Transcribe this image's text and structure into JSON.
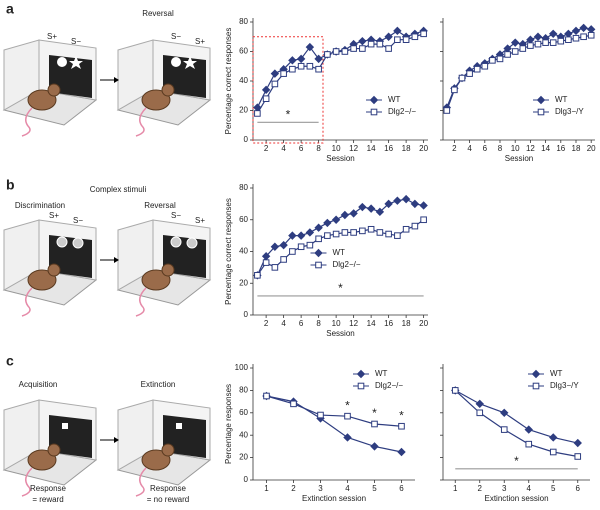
{
  "panels": [
    {
      "label": "a",
      "texts": [
        "S+",
        "S−",
        "Reversal",
        "S−",
        "S+"
      ]
    },
    {
      "label": "b",
      "texts": [
        "Complex stimuli",
        "Discrimination",
        "Reversal",
        "S+",
        "S−",
        "S−",
        "S+"
      ]
    },
    {
      "label": "c",
      "texts": [
        "Acquisition",
        "Extinction",
        "Response",
        "= reward",
        "Response",
        "= no reward"
      ]
    }
  ],
  "chart_data": [
    {
      "type": "line",
      "ylabel": "Percentage correct responses",
      "xlabel": "Session",
      "xlim": [
        0.5,
        20.5
      ],
      "xticks": [
        2,
        4,
        6,
        8,
        10,
        12,
        14,
        16,
        18,
        20
      ],
      "ylim": [
        0,
        80
      ],
      "yticks": [
        0,
        20,
        40,
        60,
        80
      ],
      "ytick_labels": true,
      "legend": "lower right",
      "x": [
        1,
        2,
        3,
        4,
        5,
        6,
        7,
        8,
        9,
        10,
        11,
        12,
        13,
        14,
        15,
        16,
        17,
        18,
        19,
        20
      ],
      "series": [
        {
          "name": "WT",
          "color": "#2e3d80",
          "marker": "diamond",
          "values": [
            22,
            34,
            45,
            48,
            54,
            55,
            63,
            55,
            58,
            60,
            61,
            65,
            67,
            68,
            67,
            70,
            74,
            70,
            72,
            74
          ]
        },
        {
          "name": "Dlg2−/−",
          "color": "#2e3d80",
          "marker": "square",
          "values": [
            18,
            28,
            38,
            45,
            48,
            50,
            50,
            48,
            58,
            60,
            60,
            62,
            62,
            65,
            65,
            62,
            68,
            68,
            70,
            72
          ]
        }
      ],
      "highlight": {
        "x": [
          0.5,
          8.5
        ],
        "y": [
          -2,
          70
        ]
      },
      "significance": [
        {
          "x": [
            1,
            8
          ],
          "y": 12,
          "label": "*"
        }
      ]
    },
    {
      "type": "line",
      "xlabel": "Session",
      "xlim": [
        0.5,
        20.5
      ],
      "xticks": [
        2,
        4,
        6,
        8,
        10,
        12,
        14,
        16,
        18,
        20
      ],
      "ylim": [
        0,
        80
      ],
      "yticks": [
        0,
        20,
        40,
        60,
        80
      ],
      "ytick_labels": false,
      "legend": "lower right",
      "x": [
        1,
        2,
        3,
        4,
        5,
        6,
        7,
        8,
        9,
        10,
        11,
        12,
        13,
        14,
        15,
        16,
        17,
        18,
        19,
        20
      ],
      "series": [
        {
          "name": "WT",
          "color": "#2e3d80",
          "marker": "diamond",
          "values": [
            22,
            35,
            42,
            47,
            50,
            52,
            55,
            58,
            62,
            66,
            65,
            68,
            70,
            69,
            72,
            70,
            72,
            74,
            76,
            75
          ]
        },
        {
          "name": "Dlg3−/Y",
          "color": "#2e3d80",
          "marker": "square",
          "values": [
            20,
            34,
            42,
            45,
            48,
            50,
            54,
            55,
            58,
            60,
            62,
            64,
            65,
            66,
            66,
            67,
            68,
            69,
            70,
            71
          ]
        }
      ]
    },
    {
      "type": "line",
      "ylabel": "Percentage correct responses",
      "xlabel": "Session",
      "xlim": [
        0.5,
        20.5
      ],
      "xticks": [
        2,
        4,
        6,
        8,
        10,
        12,
        14,
        16,
        18,
        20
      ],
      "ylim": [
        0,
        80
      ],
      "yticks": [
        0,
        20,
        40,
        60,
        80
      ],
      "ytick_labels": true,
      "legend": "lower center",
      "x": [
        1,
        2,
        3,
        4,
        5,
        6,
        7,
        8,
        9,
        10,
        11,
        12,
        13,
        14,
        15,
        16,
        17,
        18,
        19,
        20
      ],
      "series": [
        {
          "name": "WT",
          "color": "#2e3d80",
          "marker": "diamond",
          "values": [
            25,
            37,
            43,
            44,
            50,
            50,
            52,
            55,
            58,
            60,
            63,
            64,
            68,
            67,
            65,
            70,
            72,
            73,
            70,
            69
          ]
        },
        {
          "name": "Dlg2−/−",
          "color": "#2e3d80",
          "marker": "square",
          "values": [
            25,
            33,
            30,
            35,
            40,
            43,
            44,
            48,
            50,
            51,
            52,
            52,
            53,
            54,
            52,
            51,
            50,
            54,
            56,
            60
          ]
        }
      ],
      "significance": [
        {
          "x": [
            1,
            20
          ],
          "y": 12,
          "label": "*"
        }
      ]
    },
    {
      "type": "line",
      "ylabel": "Percentage responses",
      "xlabel": "Extinction session",
      "xlim": [
        0.5,
        6.5
      ],
      "xticks": [
        1,
        2,
        3,
        4,
        5,
        6
      ],
      "ylim": [
        0,
        100
      ],
      "yticks": [
        0,
        20,
        40,
        60,
        80,
        100
      ],
      "ytick_labels": true,
      "legend": "upper right",
      "x": [
        1,
        2,
        3,
        4,
        5,
        6
      ],
      "series": [
        {
          "name": "WT",
          "color": "#2e3d80",
          "marker": "diamond",
          "values": [
            75,
            70,
            55,
            38,
            30,
            25
          ]
        },
        {
          "name": "Dlg2−/−",
          "color": "#2e3d80",
          "marker": "square",
          "values": [
            75,
            68,
            58,
            57,
            50,
            48
          ]
        }
      ],
      "stars": [
        {
          "x": 4,
          "y": 66,
          "label": "*"
        },
        {
          "x": 5,
          "y": 59,
          "label": "*"
        },
        {
          "x": 6,
          "y": 57,
          "label": "*"
        }
      ]
    },
    {
      "type": "line",
      "xlabel": "Extinction session",
      "xlim": [
        0.5,
        6.5
      ],
      "xticks": [
        1,
        2,
        3,
        4,
        5,
        6
      ],
      "ylim": [
        0,
        100
      ],
      "yticks": [
        0,
        20,
        40,
        60,
        80,
        100
      ],
      "ytick_labels": false,
      "legend": "upper right",
      "x": [
        1,
        2,
        3,
        4,
        5,
        6
      ],
      "series": [
        {
          "name": "WT",
          "color": "#2e3d80",
          "marker": "diamond",
          "values": [
            80,
            68,
            60,
            45,
            38,
            33
          ]
        },
        {
          "name": "Dlg3−/Y",
          "color": "#2e3d80",
          "marker": "square",
          "values": [
            80,
            60,
            45,
            32,
            25,
            21
          ]
        }
      ],
      "significance": [
        {
          "x": [
            1,
            6
          ],
          "y": 10,
          "label": "*"
        }
      ]
    }
  ]
}
